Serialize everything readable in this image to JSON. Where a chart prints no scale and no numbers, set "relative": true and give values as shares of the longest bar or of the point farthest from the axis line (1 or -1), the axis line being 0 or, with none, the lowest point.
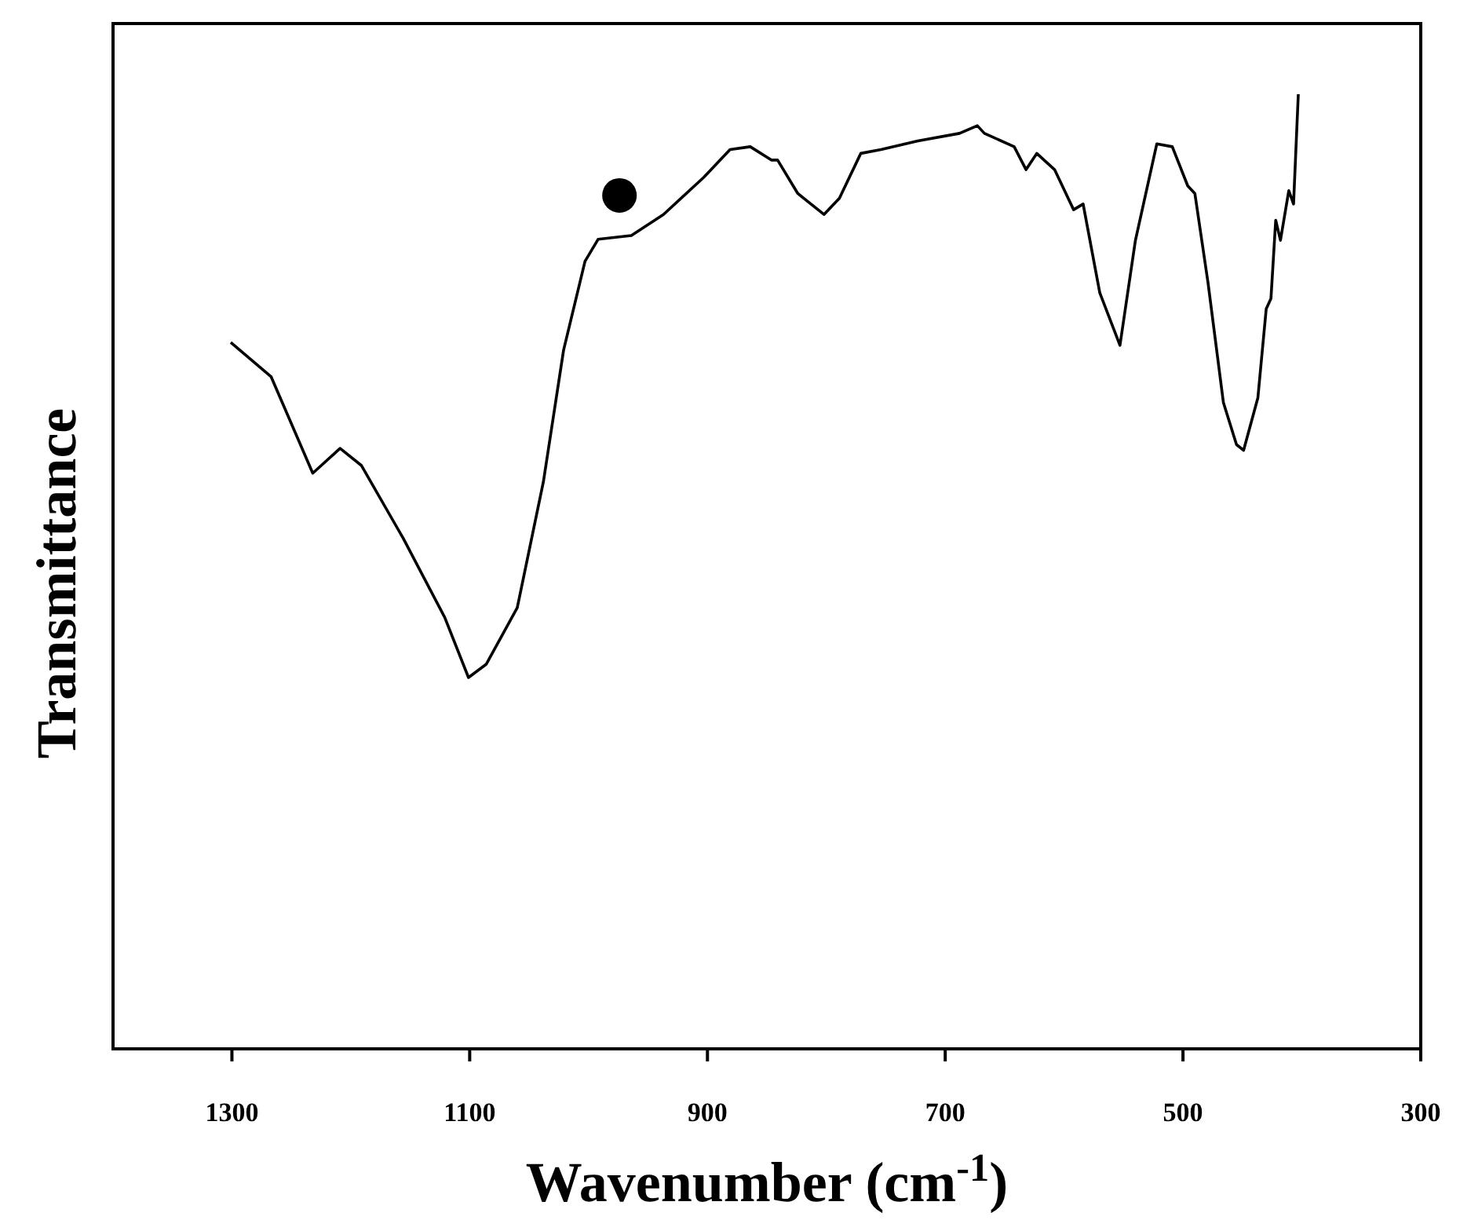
{
  "chart_data": {
    "type": "line",
    "xlabel": "Wavenumber (cm$^{-1}$)",
    "ylabel": "Transmittance",
    "relative": true,
    "xlim": [
      1400,
      300
    ],
    "xticks": [
      1300,
      1100,
      900,
      700,
      500,
      300
    ],
    "grid": false,
    "line_style": "solid",
    "series": [
      {
        "color": "#000000",
        "marker": "none",
        "x": [
          1301,
          1267,
          1232,
          1209,
          1191,
          1156,
          1121,
          1101,
          1086,
          1060,
          1038,
          1021,
          1003,
          992,
          964,
          937,
          903,
          881,
          864,
          846,
          841,
          824,
          802,
          789,
          771,
          754,
          723,
          688,
          673,
          667,
          642,
          632,
          623,
          608,
          592,
          584,
          570,
          553,
          540,
          522,
          509,
          496,
          490,
          479,
          466,
          455,
          449,
          437,
          430,
          426,
          422,
          418,
          411,
          407,
          403
        ],
        "values": [
          0.74,
          0.704,
          0.603,
          0.629,
          0.611,
          0.535,
          0.452,
          0.389,
          0.403,
          0.462,
          0.594,
          0.732,
          0.825,
          0.848,
          0.852,
          0.874,
          0.913,
          0.942,
          0.945,
          0.931,
          0.931,
          0.896,
          0.874,
          0.891,
          0.938,
          0.942,
          0.951,
          0.959,
          0.967,
          0.959,
          0.945,
          0.921,
          0.938,
          0.921,
          0.879,
          0.885,
          0.792,
          0.737,
          0.847,
          0.948,
          0.945,
          0.904,
          0.896,
          0.803,
          0.677,
          0.633,
          0.627,
          0.682,
          0.775,
          0.786,
          0.868,
          0.847,
          0.899,
          0.885,
          1.0
        ]
      },
      {
        "type": "scatter",
        "color": "#000000",
        "marker": "circle",
        "x": [
          974
        ],
        "values": [
          0.894
        ]
      }
    ]
  }
}
